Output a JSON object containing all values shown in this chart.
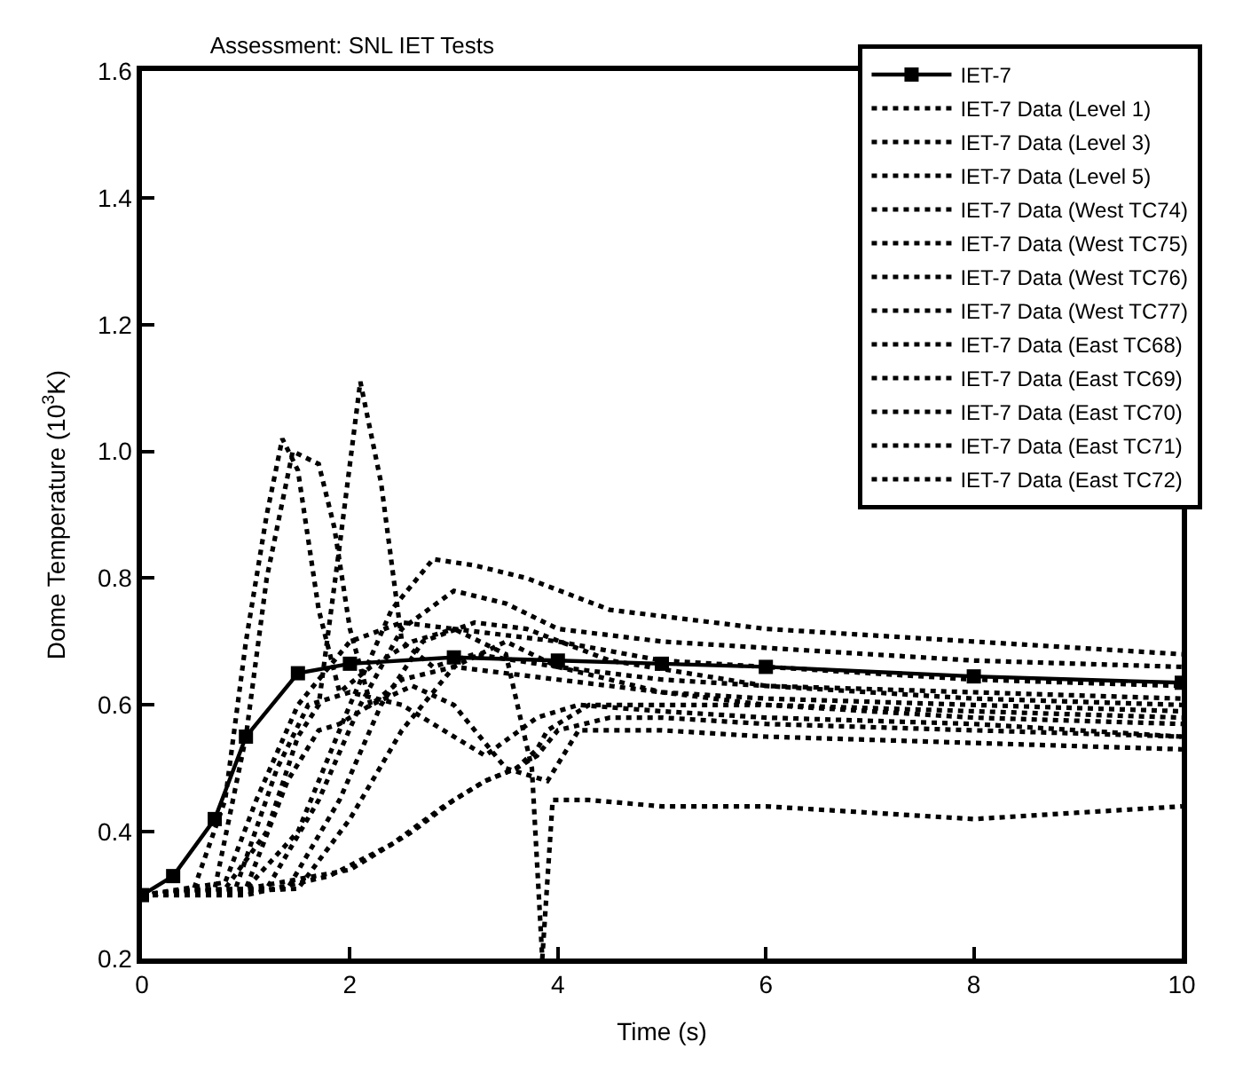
{
  "chart_data": {
    "type": "line",
    "title": "Assessment: SNL IET Tests",
    "xlabel": "Time (s)",
    "ylabel": "Dome Temperature (10$^{3}$K)",
    "xlim": [
      0,
      10
    ],
    "xticks": [
      0,
      2,
      4,
      6,
      8,
      10
    ],
    "ylim": [
      0.2,
      1.6
    ],
    "yticks": [
      0.2,
      0.4,
      0.6,
      0.8,
      {
        "value": 1,
        "label": "1.0"
      },
      1.2,
      1.4,
      1.6
    ],
    "legend": "top right",
    "series": [
      {
        "name": "IET-7",
        "color": "#000000",
        "line_style": "solid",
        "marker": "square",
        "x": [
          0,
          0.3,
          0.7,
          1.0,
          1.5,
          2,
          3,
          4,
          5,
          6,
          8,
          10
        ],
        "values": [
          0.3,
          0.33,
          0.42,
          0.55,
          0.65,
          0.665,
          0.675,
          0.67,
          0.665,
          0.66,
          0.645,
          0.635
        ]
      },
      {
        "name": "IET-7 Data (Level 1)",
        "color": "#000000",
        "line_style": "dotted",
        "marker": "none",
        "x": [
          0,
          0.5,
          0.8,
          1.0,
          1.2,
          1.35,
          1.5,
          1.7,
          1.9,
          2.2,
          2.6,
          3,
          4,
          5,
          6,
          8,
          10
        ],
        "values": [
          0.3,
          0.31,
          0.45,
          0.7,
          0.9,
          1.02,
          0.97,
          0.75,
          0.62,
          0.66,
          0.7,
          0.72,
          0.7,
          0.67,
          0.66,
          0.64,
          0.63
        ]
      },
      {
        "name": "IET-7 Data (Level 3)",
        "color": "#000000",
        "line_style": "dotted",
        "marker": "none",
        "x": [
          0,
          0.8,
          1.2,
          1.5,
          1.7,
          1.9,
          2.1,
          2.3,
          2.5,
          2.8,
          3.2,
          4,
          5,
          6,
          8,
          10
        ],
        "values": [
          0.3,
          0.31,
          0.4,
          0.55,
          0.6,
          0.85,
          1.11,
          0.95,
          0.7,
          0.66,
          0.68,
          0.66,
          0.64,
          0.63,
          0.61,
          0.6
        ]
      },
      {
        "name": "IET-7 Data (Level 5)",
        "color": "#000000",
        "line_style": "dotted",
        "marker": "none",
        "x": [
          0,
          0.7,
          1.0,
          1.2,
          1.45,
          1.7,
          1.85,
          2.0,
          2.2,
          2.5,
          3,
          4,
          5,
          6,
          8,
          10
        ],
        "values": [
          0.3,
          0.31,
          0.55,
          0.8,
          1.0,
          0.98,
          0.88,
          0.72,
          0.6,
          0.64,
          0.66,
          0.64,
          0.62,
          0.61,
          0.6,
          0.59
        ]
      },
      {
        "name": "IET-7 Data (West TC74)",
        "color": "#000000",
        "line_style": "dotted",
        "marker": "none",
        "x": [
          0,
          1.0,
          1.5,
          2.0,
          2.4,
          2.8,
          3.2,
          3.7,
          4.5,
          6,
          8,
          10
        ],
        "values": [
          0.3,
          0.31,
          0.4,
          0.6,
          0.75,
          0.83,
          0.82,
          0.8,
          0.75,
          0.72,
          0.7,
          0.68
        ]
      },
      {
        "name": "IET-7 Data (West TC75)",
        "color": "#000000",
        "line_style": "dotted",
        "marker": "none",
        "x": [
          0,
          1.2,
          1.7,
          2.1,
          2.5,
          3,
          3.5,
          4,
          5,
          6,
          8,
          10
        ],
        "values": [
          0.3,
          0.31,
          0.45,
          0.6,
          0.72,
          0.78,
          0.76,
          0.72,
          0.7,
          0.69,
          0.67,
          0.66
        ]
      },
      {
        "name": "IET-7 Data (West TC76)",
        "color": "#000000",
        "line_style": "dotted",
        "marker": "none",
        "x": [
          0,
          1.4,
          1.9,
          2.3,
          2.7,
          3.2,
          3.7,
          4.5,
          6,
          8,
          10
        ],
        "values": [
          0.3,
          0.31,
          0.45,
          0.6,
          0.7,
          0.73,
          0.72,
          0.67,
          0.63,
          0.62,
          0.61
        ]
      },
      {
        "name": "IET-7 Data (West TC77)",
        "color": "#000000",
        "line_style": "dotted",
        "marker": "none",
        "x": [
          0,
          1.5,
          2.0,
          2.5,
          3,
          3.5,
          4,
          5,
          6,
          8,
          10
        ],
        "values": [
          0.3,
          0.31,
          0.42,
          0.56,
          0.66,
          0.7,
          0.66,
          0.62,
          0.6,
          0.59,
          0.58
        ]
      },
      {
        "name": "IET-7 Data (East TC68)",
        "color": "#000000",
        "line_style": "dotted",
        "marker": "none",
        "x": [
          0,
          0.8,
          1.1,
          1.5,
          2,
          2.5,
          3,
          3.5,
          3.75,
          3.85,
          3.95,
          4.3,
          5,
          6,
          7,
          8,
          9,
          10
        ],
        "values": [
          0.3,
          0.32,
          0.45,
          0.6,
          0.7,
          0.73,
          0.72,
          0.68,
          0.5,
          0.2,
          0.45,
          0.45,
          0.44,
          0.44,
          0.43,
          0.42,
          0.43,
          0.44
        ]
      },
      {
        "name": "IET-7 Data (East TC69)",
        "color": "#000000",
        "line_style": "dotted",
        "marker": "none",
        "x": [
          0,
          0.9,
          1.3,
          1.6,
          2.0,
          2.5,
          3.0,
          3.3,
          3.8,
          4.2,
          5,
          6,
          8,
          10
        ],
        "values": [
          0.3,
          0.31,
          0.5,
          0.6,
          0.62,
          0.6,
          0.55,
          0.52,
          0.58,
          0.6,
          0.59,
          0.58,
          0.57,
          0.55
        ]
      },
      {
        "name": "IET-7 Data (East TC70)",
        "color": "#000000",
        "line_style": "dotted",
        "marker": "none",
        "x": [
          0,
          1.0,
          1.4,
          1.7,
          1.9,
          2.2,
          2.6,
          3,
          3.5,
          3.9,
          4.2,
          5,
          6,
          8,
          10
        ],
        "values": [
          0.3,
          0.31,
          0.48,
          0.56,
          0.57,
          0.6,
          0.63,
          0.6,
          0.5,
          0.48,
          0.56,
          0.56,
          0.55,
          0.54,
          0.53
        ]
      },
      {
        "name": "IET-7 Data (East TC71)",
        "color": "#000000",
        "line_style": "dotted",
        "marker": "none",
        "x": [
          0,
          1,
          2,
          2.6,
          3.0,
          3.3,
          3.6,
          3.8,
          4.0,
          4.5,
          5,
          6,
          8,
          10
        ],
        "values": [
          0.3,
          0.31,
          0.34,
          0.4,
          0.45,
          0.48,
          0.5,
          0.52,
          0.56,
          0.58,
          0.58,
          0.57,
          0.56,
          0.55
        ]
      },
      {
        "name": "IET-7 Data (East TC72)",
        "color": "#000000",
        "line_style": "dotted",
        "marker": "none",
        "x": [
          0,
          1,
          1.8,
          2.4,
          2.9,
          3.3,
          3.6,
          3.8,
          3.9,
          4.3,
          5,
          6,
          8,
          10
        ],
        "values": [
          0.3,
          0.3,
          0.33,
          0.38,
          0.44,
          0.48,
          0.5,
          0.53,
          0.56,
          0.6,
          0.6,
          0.6,
          0.58,
          0.57
        ]
      }
    ]
  }
}
